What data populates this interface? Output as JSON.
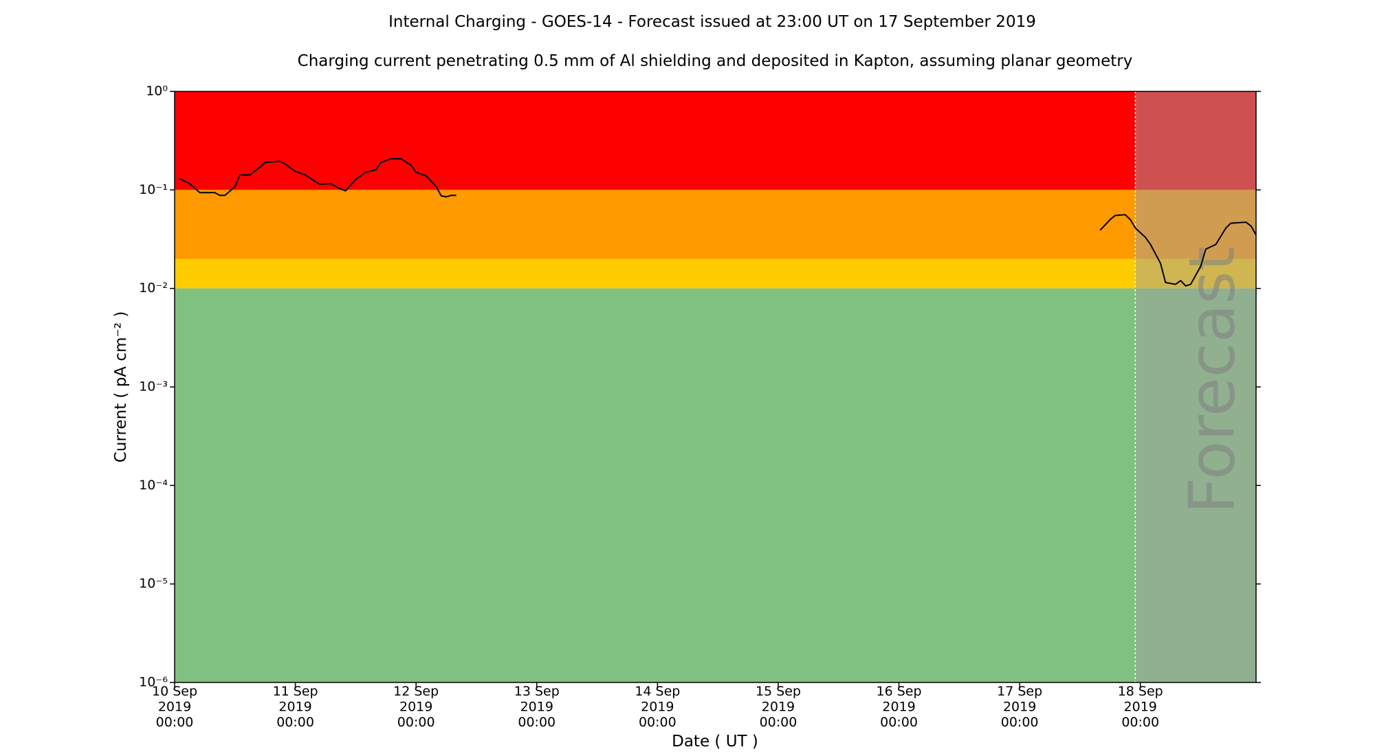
{
  "chart_data": {
    "type": "line",
    "title": "Internal Charging - GOES-14 - Forecast issued at 23:00 UT on 17 September 2019",
    "subtitle": "Charging current penetrating 0.5 mm of Al shielding and deposited in Kapton, assuming planar geometry",
    "xlabel": "Date ( UT )",
    "ylabel": "Current ( pA cm⁻² )",
    "ylog": true,
    "ylim": [
      1e-06,
      1
    ],
    "yticks": [
      {
        "value": 1e-06,
        "label": "10⁻⁶"
      },
      {
        "value": 1e-05,
        "label": "10⁻⁵"
      },
      {
        "value": 0.0001,
        "label": "10⁻⁴"
      },
      {
        "value": 0.001,
        "label": "10⁻³"
      },
      {
        "value": 0.01,
        "label": "10⁻²"
      },
      {
        "value": 0.1,
        "label": "10⁻¹"
      },
      {
        "value": 1,
        "label": "10⁰"
      }
    ],
    "xlim": [
      "2019-09-10 00:00",
      "2019-09-18 23:00"
    ],
    "xticks": [
      {
        "value": "2019-09-10 00:00",
        "label": "10 Sep\n2019\n00:00"
      },
      {
        "value": "2019-09-11 00:00",
        "label": "11 Sep\n2019\n00:00"
      },
      {
        "value": "2019-09-12 00:00",
        "label": "12 Sep\n2019\n00:00"
      },
      {
        "value": "2019-09-13 00:00",
        "label": "13 Sep\n2019\n00:00"
      },
      {
        "value": "2019-09-14 00:00",
        "label": "14 Sep\n2019\n00:00"
      },
      {
        "value": "2019-09-15 00:00",
        "label": "15 Sep\n2019\n00:00"
      },
      {
        "value": "2019-09-16 00:00",
        "label": "16 Sep\n2019\n00:00"
      },
      {
        "value": "2019-09-17 00:00",
        "label": "17 Sep\n2019\n00:00"
      },
      {
        "value": "2019-09-18 00:00",
        "label": "18 Sep\n2019\n00:00"
      }
    ],
    "bands": [
      {
        "from": 0.1,
        "to": 1,
        "color": "#ff0000"
      },
      {
        "from": 0.02,
        "to": 0.1,
        "color": "#ff9900"
      },
      {
        "from": 0.01,
        "to": 0.02,
        "color": "#ffcc00"
      },
      {
        "from": 1e-06,
        "to": 0.01,
        "color": "#80c080"
      }
    ],
    "forecast_start": "2019-09-17 23:00",
    "forecast_label": "Forecast",
    "forecast_shade": "#a0a0a0",
    "series": [
      {
        "color": "#000000",
        "x": [
          "2019-09-10 01:00",
          "2019-09-10 03:00",
          "2019-09-10 05:00",
          "2019-09-10 08:00",
          "2019-09-10 09:00",
          "2019-09-10 10:00",
          "2019-09-10 12:00",
          "2019-09-10 13:00",
          "2019-09-10 15:00",
          "2019-09-10 17:00",
          "2019-09-10 18:00",
          "2019-09-10 21:00",
          "2019-09-10 22:00",
          "2019-09-11 00:00",
          "2019-09-11 02:00",
          "2019-09-11 04:00",
          "2019-09-11 05:00",
          "2019-09-11 07:00",
          "2019-09-11 09:00",
          "2019-09-11 10:00",
          "2019-09-11 12:00",
          "2019-09-11 14:00",
          "2019-09-11 16:00",
          "2019-09-11 17:00",
          "2019-09-11 19:00",
          "2019-09-11 21:00",
          "2019-09-11 23:00",
          "2019-09-12 00:00",
          "2019-09-12 02:00",
          "2019-09-12 04:00",
          "2019-09-12 05:00",
          "2019-09-12 06:00",
          "2019-09-12 07:00",
          "2019-09-12 08:00"
        ],
        "values": [
          0.13,
          0.116,
          0.094,
          0.094,
          0.088,
          0.088,
          0.108,
          0.142,
          0.142,
          0.171,
          0.19,
          0.195,
          0.183,
          0.154,
          0.142,
          0.121,
          0.114,
          0.116,
          0.102,
          0.098,
          0.128,
          0.151,
          0.16,
          0.19,
          0.207,
          0.207,
          0.178,
          0.151,
          0.139,
          0.108,
          0.087,
          0.085,
          0.088,
          0.088
        ]
      },
      {
        "color": "#000000",
        "x": [
          "2019-09-17 16:00",
          "2019-09-17 18:00",
          "2019-09-17 19:00",
          "2019-09-17 21:00",
          "2019-09-17 22:00",
          "2019-09-17 23:00",
          "2019-09-18 01:00",
          "2019-09-18 02:00",
          "2019-09-18 04:00",
          "2019-09-18 05:00",
          "2019-09-18 07:00",
          "2019-09-18 08:00",
          "2019-09-18 09:00",
          "2019-09-18 10:00",
          "2019-09-18 12:00",
          "2019-09-18 13:00",
          "2019-09-18 15:00",
          "2019-09-18 17:00",
          "2019-09-18 18:00",
          "2019-09-18 21:00",
          "2019-09-18 22:00",
          "2019-09-18 23:00"
        ],
        "values": [
          0.039,
          0.05,
          0.055,
          0.056,
          0.05,
          0.041,
          0.033,
          0.028,
          0.018,
          0.0115,
          0.011,
          0.012,
          0.0106,
          0.011,
          0.0168,
          0.025,
          0.028,
          0.041,
          0.046,
          0.047,
          0.043,
          0.035
        ]
      }
    ]
  }
}
